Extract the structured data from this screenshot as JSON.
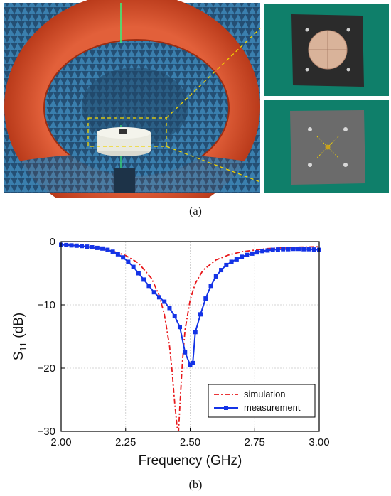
{
  "panels": {
    "a_label": "(a)",
    "b_label": "(b)"
  },
  "colors": {
    "simulation": "#e8191c",
    "measurement": "#1433e6",
    "chamber_absorber": "#2f6f9a",
    "chamber_ring": "#d8502a",
    "guide_lines": "#f2d400",
    "board_top": "#d9b39a",
    "board_bg": "#2b2b2b",
    "photo_bg": "#0f7f6a"
  },
  "icons": {
    "chamber": "anechoic-chamber-photo",
    "antenna_top": "antenna-top-view-photo",
    "antenna_bottom": "antenna-bottom-view-photo"
  },
  "chart_data": {
    "type": "line",
    "title": "",
    "xlabel": "Frequency (GHz)",
    "ylabel_main": "S",
    "ylabel_sub": "11",
    "ylabel_unit": " (dB)",
    "xlim": [
      2.0,
      3.0
    ],
    "ylim": [
      -30,
      0
    ],
    "xticks": [
      2.0,
      2.25,
      2.5,
      2.75,
      3.0
    ],
    "xtick_labels": [
      "2.00",
      "2.25",
      "2.50",
      "2.75",
      "3.00"
    ],
    "yticks": [
      0,
      -10,
      -20,
      -30
    ],
    "ytick_labels": [
      "0",
      "−10",
      "−20",
      "−30"
    ],
    "grid": true,
    "legend_position": "bottom-right",
    "series": [
      {
        "name": "simulation",
        "style": "dash-dot",
        "x": [
          2.0,
          2.1,
          2.2,
          2.25,
          2.3,
          2.35,
          2.38,
          2.4,
          2.42,
          2.43,
          2.44,
          2.45,
          2.455,
          2.46,
          2.47,
          2.48,
          2.5,
          2.52,
          2.55,
          2.6,
          2.65,
          2.7,
          2.8,
          2.9,
          3.0
        ],
        "y": [
          -0.4,
          -0.8,
          -1.5,
          -2.2,
          -3.4,
          -5.8,
          -8.5,
          -11.5,
          -16.5,
          -20.5,
          -25.5,
          -29.5,
          -30,
          -26,
          -19,
          -14,
          -9.2,
          -6.6,
          -4.5,
          -2.9,
          -2.1,
          -1.6,
          -1.1,
          -0.9,
          -0.8
        ]
      },
      {
        "name": "measurement",
        "style": "solid-square-markers",
        "x": [
          2.0,
          2.02,
          2.04,
          2.06,
          2.08,
          2.1,
          2.12,
          2.14,
          2.16,
          2.18,
          2.2,
          2.22,
          2.24,
          2.26,
          2.28,
          2.3,
          2.32,
          2.34,
          2.36,
          2.38,
          2.4,
          2.42,
          2.44,
          2.46,
          2.48,
          2.5,
          2.51,
          2.52,
          2.54,
          2.56,
          2.58,
          2.6,
          2.62,
          2.64,
          2.66,
          2.68,
          2.7,
          2.72,
          2.74,
          2.76,
          2.78,
          2.8,
          2.82,
          2.84,
          2.86,
          2.88,
          2.9,
          2.92,
          2.94,
          2.96,
          2.98,
          3.0
        ],
        "y": [
          -0.5,
          -0.55,
          -0.6,
          -0.65,
          -0.7,
          -0.8,
          -0.9,
          -1.0,
          -1.1,
          -1.3,
          -1.6,
          -2.0,
          -2.5,
          -3.2,
          -4.0,
          -5.0,
          -6.0,
          -7.0,
          -8.0,
          -8.8,
          -9.5,
          -10.5,
          -11.8,
          -13.5,
          -17.5,
          -19.5,
          -19.2,
          -14.3,
          -11.5,
          -9.0,
          -7.0,
          -5.5,
          -4.5,
          -3.7,
          -3.2,
          -2.8,
          -2.4,
          -2.1,
          -1.9,
          -1.7,
          -1.5,
          -1.4,
          -1.3,
          -1.25,
          -1.2,
          -1.2,
          -1.15,
          -1.15,
          -1.2,
          -1.2,
          -1.25,
          -1.3
        ]
      }
    ]
  }
}
